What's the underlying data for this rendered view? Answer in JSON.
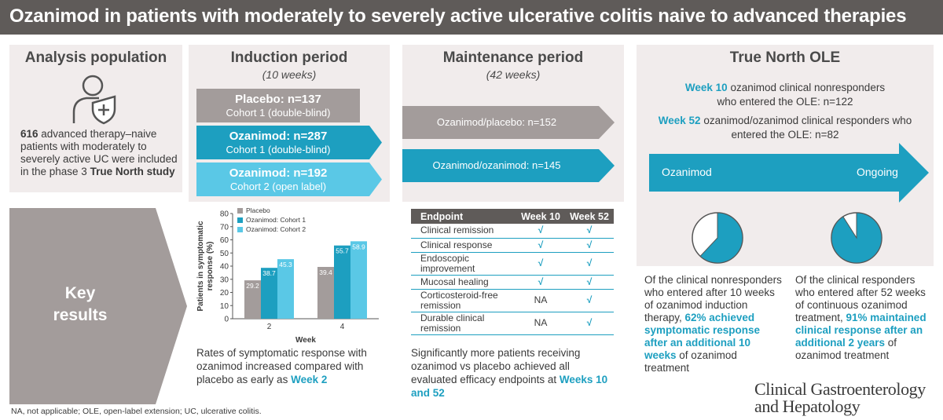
{
  "title": "Ozanimod in patients with moderately to severely active ulcerative colitis naive to advanced therapies",
  "analysis": {
    "heading": "Analysis population",
    "text_bold1": "616",
    "text_main": " advanced therapy–naive patients with moderately to severely active UC were included in the phase 3 ",
    "text_bold2": "True North study"
  },
  "key_results": {
    "line1": "Key",
    "line2": "results"
  },
  "induction": {
    "heading": "Induction period",
    "duration": "(10 weeks)",
    "arms": [
      {
        "title": "Placebo: n=137",
        "cohort": "Cohort 1 (double-blind)",
        "color": "#a39c9b"
      },
      {
        "title": "Ozanimod: n=287",
        "cohort": "Cohort 1 (double-blind)",
        "color": "#1d9fc0"
      },
      {
        "title": "Ozanimod: n=192",
        "cohort": "Cohort 2 (open label)",
        "color": "#5ac8e6"
      }
    ],
    "text_main": "Rates of symptomatic response with ozanimod increased compared with placebo as early as ",
    "text_highlight": "Week 2"
  },
  "chart_data": {
    "type": "bar",
    "categories": [
      "2",
      "4"
    ],
    "series": [
      {
        "name": "Placebo",
        "values": [
          29.2,
          39.4
        ],
        "color": "#a39c9b"
      },
      {
        "name": "Ozanimod: Cohort 1",
        "values": [
          38.7,
          55.7
        ],
        "color": "#1d9fc0"
      },
      {
        "name": "Ozanimod: Cohort 2",
        "values": [
          45.3,
          58.9
        ],
        "color": "#5ac8e6"
      }
    ],
    "xlabel": "Week",
    "ylabel": "Patients in symptomatic response (%)",
    "ylim": [
      0,
      80
    ],
    "yticks": [
      0,
      10,
      20,
      30,
      40,
      50,
      60,
      70,
      80
    ],
    "legend": "top-left",
    "grid": false
  },
  "maintenance": {
    "heading": "Maintenance period",
    "duration": "(42 weeks)",
    "arms": [
      {
        "label": "Ozanimod/placebo: n=152",
        "color": "#a39c9b"
      },
      {
        "label": "Ozanimod/ozanimod: n=145",
        "color": "#1d9fc0"
      }
    ],
    "table": {
      "headers": [
        "Endpoint",
        "Week 10",
        "Week 52"
      ],
      "rows": [
        [
          "Clinical remission",
          "√",
          "√"
        ],
        [
          "Clinical response",
          "√",
          "√"
        ],
        [
          "Endoscopic improvement",
          "√",
          "√"
        ],
        [
          "Mucosal healing",
          "√",
          "√"
        ],
        [
          "Corticosteroid-free remission",
          "NA",
          "√"
        ],
        [
          "Durable clinical remission",
          "NA",
          "√"
        ]
      ]
    },
    "text_main": "Significantly more patients receiving ozanimod vs placebo achieved all evaluated efficacy endpoints at ",
    "text_highlight": "Weeks 10 and 52"
  },
  "ole": {
    "heading": "True North OLE",
    "line1_bold": "Week 10",
    "line1_rest": " ozanimod clinical nonresponders who entered the OLE: n=122",
    "line2_bold": "Week 52",
    "line2_rest": " ozanimod/ozanimod clinical responders who entered the OLE: n=82",
    "arrow_left": "Ozanimod",
    "arrow_right": "Ongoing",
    "pie1_fraction": 0.62,
    "pie2_fraction": 0.91,
    "pie1_text_a": "Of the clinical nonresponders who entered after 10 weeks of ozanimod induction therapy, ",
    "pie1_text_hl": "62% achieved symptomatic response after an additional 10 weeks",
    "pie1_text_b": " of ozanimod treatment",
    "pie2_text_a": "Of the clinical responders who entered after 52 weeks of continuous ozanimod treatment, ",
    "pie2_text_hl": "91% maintained clinical response after an additional 2 years",
    "pie2_text_b": " of ozanimod treatment"
  },
  "footnote": "NA, not applicable; OLE, open-label extension; UC, ulcerative colitis.",
  "logo": {
    "line1": "Clinical Gastroenterology",
    "line2": "and Hepatology"
  }
}
